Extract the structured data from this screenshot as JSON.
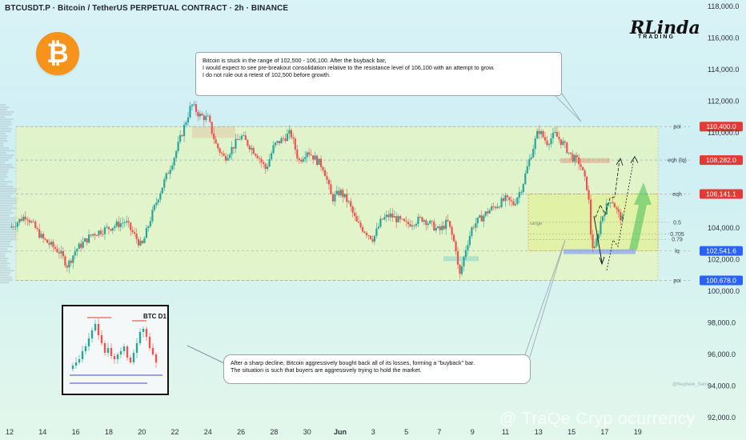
{
  "header": {
    "title": "BTCUSDT.P · Bitcoin / TetherUS PERPETUAL CONTRACT · 2h · BINANCE"
  },
  "logo": {
    "coin_symbol": "₿",
    "coin_color": "#f7931a",
    "brand": "RLinda",
    "brand_sub": "TRADING"
  },
  "notes": {
    "top": [
      "Bitcoin is stuck in the range of 102,500 - 106,100. After the buyback bar,",
      "I would expect to see pre-breakout consolidation relative to the resistance level of 106,100 with an attempt to grow.",
      "I do not rule out a retest of 102,500 before growth."
    ],
    "bottom": [
      "After a sharp decline, Bitcoin aggressively bought back all of its losses, forming a \"buyback\" bar.",
      "The situation is such that buyers are aggressively trying to hold the market."
    ]
  },
  "inset": {
    "label": "BTC D1"
  },
  "watermark": "@ TraQe Cryp  ocurrency",
  "author": "@Nephew_Sam_",
  "chart_data": {
    "type": "candlestick",
    "symbol": "BTCUSDT.P",
    "timeframe": "2h",
    "y_axis": {
      "ticks": [
        "118,000.0",
        "116,000.0",
        "114,000.0",
        "112,000.0",
        "110,000.0",
        "104,000.0",
        "102,000.0",
        "100,000.0",
        "98,000.0",
        "96,000.0",
        "94,000.0",
        "92,000.0"
      ],
      "tick_values": [
        118000,
        116000,
        114000,
        112000,
        110000,
        104000,
        102000,
        100000,
        98000,
        96000,
        94000,
        92000
      ],
      "range": [
        91500,
        118400
      ]
    },
    "x_axis": {
      "ticks": [
        "12",
        "14",
        "16",
        "18",
        "20",
        "22",
        "24",
        "26",
        "28",
        "30",
        "Jun",
        "3",
        "5",
        "7",
        "9",
        "11",
        "13",
        "15",
        "17",
        "19"
      ],
      "range": [
        0,
        40
      ]
    },
    "levels": [
      {
        "name": "poi",
        "value": 110400,
        "label": "110,400.0",
        "color": "#e53935"
      },
      {
        "name": "eqh (lq)",
        "value": 108282,
        "label": "108,282.0",
        "color": "#e53935"
      },
      {
        "name": "eqh",
        "value": 106141.1,
        "label": "106,141.1",
        "color": "#e53935"
      },
      {
        "name": "lq",
        "value": 102541.6,
        "label": "102,541.6",
        "color": "#2962ff"
      },
      {
        "name": "poi",
        "value": 100678,
        "label": "100,678.0",
        "color": "#2962ff"
      }
    ],
    "fib_levels": [
      {
        "name": "0.5",
        "value": 104350
      },
      {
        "name": "0.705",
        "value": 103600
      },
      {
        "name": "0.79",
        "value": 103270
      }
    ],
    "range_label": "range",
    "closes": [
      [
        0,
        104000
      ],
      [
        1,
        104800
      ],
      [
        2,
        103300
      ],
      [
        3,
        102500
      ],
      [
        3.5,
        101600
      ],
      [
        4,
        102600
      ],
      [
        5,
        103600
      ],
      [
        6,
        104000
      ],
      [
        7,
        104400
      ],
      [
        8,
        102800
      ],
      [
        8.5,
        104500
      ],
      [
        9,
        106000
      ],
      [
        10,
        108600
      ],
      [
        11,
        111800
      ],
      [
        11.5,
        111100
      ],
      [
        12,
        110900
      ],
      [
        12.5,
        109200
      ],
      [
        13,
        108400
      ],
      [
        14,
        109800
      ],
      [
        15,
        108600
      ],
      [
        15.5,
        107700
      ],
      [
        16,
        109200
      ],
      [
        17,
        110000
      ],
      [
        17.5,
        108200
      ],
      [
        18,
        108900
      ],
      [
        19,
        107800
      ],
      [
        19.5,
        105800
      ],
      [
        20,
        106300
      ],
      [
        20.5,
        105600
      ],
      [
        21,
        104300
      ],
      [
        22,
        103300
      ],
      [
        22.5,
        104500
      ],
      [
        23,
        104800
      ],
      [
        24,
        104200
      ],
      [
        25,
        104600
      ],
      [
        26,
        103800
      ],
      [
        26.5,
        104400
      ],
      [
        27,
        102700
      ],
      [
        27.2,
        100800
      ],
      [
        27.6,
        102700
      ],
      [
        28,
        104100
      ],
      [
        29,
        105100
      ],
      [
        30,
        105800
      ],
      [
        30.5,
        105500
      ],
      [
        31,
        106600
      ],
      [
        31.5,
        108500
      ],
      [
        32,
        110200
      ],
      [
        32.5,
        109400
      ],
      [
        33,
        109900
      ],
      [
        33.5,
        109300
      ],
      [
        34,
        108500
      ],
      [
        34.5,
        108100
      ],
      [
        35,
        106300
      ],
      [
        35.2,
        103000
      ],
      [
        35.4,
        102600
      ],
      [
        35.8,
        104600
      ],
      [
        36,
        105100
      ],
      [
        36.4,
        105900
      ],
      [
        36.8,
        104900
      ],
      [
        37.1,
        104500
      ]
    ],
    "projection_low": 102600,
    "projection_high": 108300
  }
}
